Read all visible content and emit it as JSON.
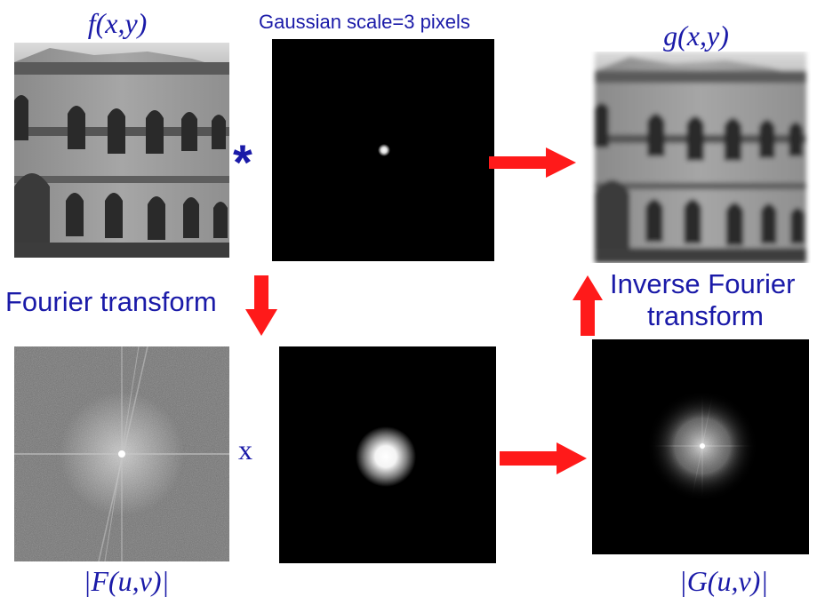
{
  "labels": {
    "f": "f(x,y)",
    "g": "g(x,y)",
    "F": "|F(u,v)|",
    "G": "|G(u,v)|",
    "kernel_title": "Gaussian scale=3 pixels",
    "fourier": "Fourier transform",
    "inverse_line1": "Inverse Fourier",
    "inverse_line2": "transform",
    "convolve": "*",
    "multiply": "x"
  },
  "colors": {
    "text": "#1a1aa8",
    "arrow": "#ff1a1a"
  }
}
